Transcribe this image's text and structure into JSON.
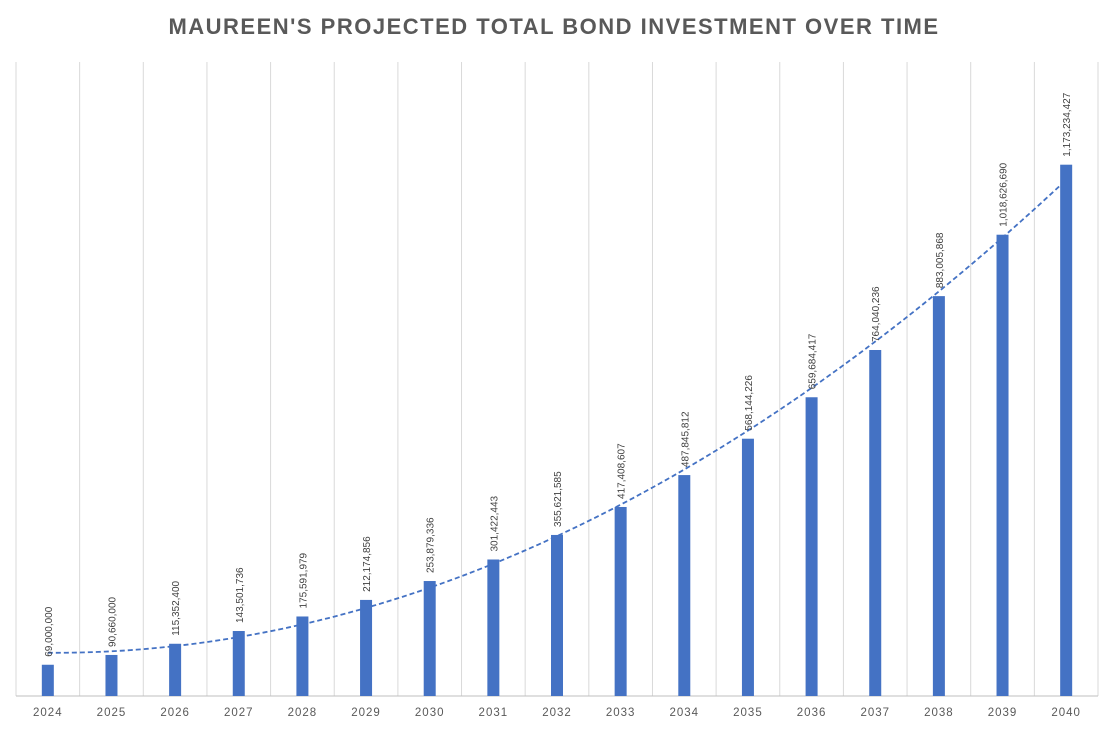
{
  "chart_data": {
    "type": "bar",
    "title": "MAUREEN'S PROJECTED TOTAL BOND INVESTMENT OVER TIME",
    "xlabel": "",
    "ylabel": "",
    "categories": [
      "2024",
      "2025",
      "2026",
      "2027",
      "2028",
      "2029",
      "2030",
      "2031",
      "2032",
      "2033",
      "2034",
      "2035",
      "2036",
      "2037",
      "2038",
      "2039",
      "2040"
    ],
    "values": [
      69000000,
      90660000,
      115352400,
      143501736,
      175591979,
      212174856,
      253879336,
      301422443,
      355621585,
      417408607,
      487845812,
      568144226,
      659684417,
      764040236,
      883005868,
      1018626690,
      1173234427
    ],
    "data_labels": [
      "69,000,000",
      "90,660,000",
      "115,352,400",
      "143,501,736",
      "175,591,979",
      "212,174,856",
      "253,879,336",
      "301,422,443",
      "355,621,585",
      "417,408,607",
      "487,845,812",
      "568,144,226",
      "659,684,417",
      "764,040,236",
      "883,005,868",
      "1,018,626,690",
      "1,173,234,427"
    ],
    "trendline": {
      "type": "polynomial",
      "style": "dashed"
    },
    "ylim": [
      0,
      1400000000
    ],
    "grid": "vertical",
    "legend": "none",
    "colors": {
      "bar": "#4472C4",
      "trendline": "#4472C4",
      "grid": "#D9D9D9",
      "axis": "#BFBFBF",
      "text": "#595959"
    }
  }
}
